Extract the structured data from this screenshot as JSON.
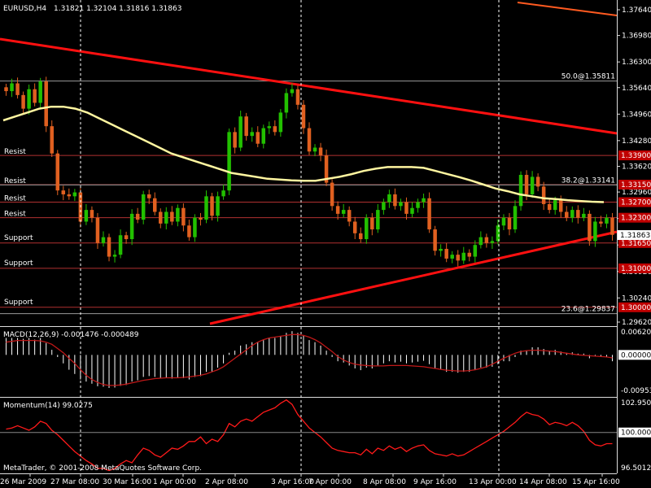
{
  "colors": {
    "background": "#000000",
    "bull": "#22c000",
    "bear": "#e06020",
    "ma": "#fff6a0",
    "trendline": "#ff1010",
    "level": "#b03030",
    "level_label_bg": "#c00000",
    "macd_hist": "#ffffff",
    "macd_signal": "#c01818",
    "momentum": "#ff1a1a",
    "axis_text": "#ffffff",
    "grid_vertical": "#ffffff"
  },
  "main": {
    "title": "EURUSD,H4",
    "ohlc": "1.31821 1.32104 1.31816 1.31863",
    "current_price": "1.31863",
    "y_ticks": [
      "1.37640",
      "1.36980",
      "1.36300",
      "1.35640",
      "1.34960",
      "1.34280",
      "1.33620",
      "1.32960",
      "1.32280",
      "1.31600",
      "1.30920",
      "1.30240",
      "1.29620"
    ],
    "level_tags": [
      "1.33900",
      "1.33150",
      "1.32700",
      "1.32300",
      "1.31650",
      "1.31000",
      "1.30000"
    ],
    "resist_labels": [
      "Resist",
      "Resist",
      "Resist",
      "Resist"
    ],
    "support_labels": [
      "Support",
      "Support",
      "Support"
    ],
    "fib_labels": [
      "50.0@1.35811",
      "38.2@1.33141",
      "23.6@1.29837"
    ]
  },
  "macd": {
    "title": "MACD(12,26,9) -0.001476 -0.000489",
    "y_ticks": [
      "0.006206",
      "0.000000",
      "-0.00953"
    ]
  },
  "momentum": {
    "title": "Momentum(14) 99.0275",
    "y_ticks": [
      "102.9505",
      "100.0000",
      "96.5012"
    ]
  },
  "x_ticks": [
    "26 Mar 2009",
    "27 Mar 08:00",
    "30 Mar 16:00",
    "1 Apr 00:00",
    "2 Apr 08:00",
    "3 Apr 16:00",
    "7 Apr 00:00",
    "8 Apr 08:00",
    "9 Apr 16:00",
    "13 Apr 00:00",
    "14 Apr 08:00",
    "15 Apr 16:00"
  ],
  "copyright": "MetaTrader, © 2001-2008 MetaQuotes Software Corp.",
  "chart_data": [
    {
      "type": "candlestick",
      "title": "EURUSD,H4",
      "ylim": [
        1.2962,
        1.3764
      ],
      "grid": false,
      "levels": [
        1.339,
        1.3315,
        1.327,
        1.323,
        1.3165,
        1.31,
        1.3
      ],
      "fibonacci": [
        {
          "label": "50.0",
          "value": 1.35811
        },
        {
          "label": "38.2",
          "value": 1.33141
        },
        {
          "label": "23.6",
          "value": 1.29837
        }
      ],
      "close": [
        1.3555,
        1.3575,
        1.3545,
        1.351,
        1.356,
        1.3525,
        1.358,
        1.3465,
        1.3395,
        1.33,
        1.329,
        1.3285,
        1.3295,
        1.322,
        1.325,
        1.323,
        1.3165,
        1.318,
        1.313,
        1.3135,
        1.3185,
        1.3175,
        1.324,
        1.3225,
        1.329,
        1.328,
        1.3245,
        1.3215,
        1.3245,
        1.322,
        1.3255,
        1.321,
        1.318,
        1.323,
        1.3225,
        1.3285,
        1.3235,
        1.3285,
        1.33,
        1.345,
        1.341,
        1.349,
        1.344,
        1.345,
        1.342,
        1.346,
        1.3465,
        1.345,
        1.35,
        1.355,
        1.356,
        1.352,
        1.346,
        1.34,
        1.341,
        1.339,
        1.332,
        1.326,
        1.324,
        1.325,
        1.322,
        1.319,
        1.3175,
        1.323,
        1.32,
        1.325,
        1.327,
        1.329,
        1.326,
        1.327,
        1.324,
        1.3255,
        1.327,
        1.328,
        1.32,
        1.3145,
        1.315,
        1.3125,
        1.3135,
        1.312,
        1.314,
        1.313,
        1.316,
        1.318,
        1.3165,
        1.317,
        1.321,
        1.323,
        1.32,
        1.326,
        1.334,
        1.329,
        1.3335,
        1.331,
        1.3265,
        1.325,
        1.3275,
        1.3245,
        1.323,
        1.325,
        1.323,
        1.324,
        1.317,
        1.322,
        1.3215,
        1.323,
        1.3186
      ],
      "ma": [
        1.348,
        1.349,
        1.35,
        1.351,
        1.3515,
        1.3515,
        1.351,
        1.35,
        1.3485,
        1.347,
        1.3455,
        1.344,
        1.3425,
        1.341,
        1.3395,
        1.3385,
        1.3375,
        1.3365,
        1.3355,
        1.3345,
        1.334,
        1.3335,
        1.333,
        1.3328,
        1.3326,
        1.3325,
        1.3325,
        1.333,
        1.3335,
        1.3342,
        1.335,
        1.3356,
        1.336,
        1.336,
        1.336,
        1.3358,
        1.335,
        1.3342,
        1.3334,
        1.3325,
        1.3315,
        1.3305,
        1.3298,
        1.329,
        1.3285,
        1.328,
        1.3278,
        1.3275,
        1.3273,
        1.3271,
        1.327
      ],
      "macd_histogram": [
        0.004,
        0.004,
        0.004,
        0.0038,
        0.004,
        0.0036,
        0.004,
        0.0028,
        0.0012,
        -0.0005,
        -0.002,
        -0.0035,
        -0.0045,
        -0.0058,
        -0.0063,
        -0.0068,
        -0.0074,
        -0.0075,
        -0.0078,
        -0.0077,
        -0.0073,
        -0.0071,
        -0.0063,
        -0.006,
        -0.0052,
        -0.005,
        -0.0052,
        -0.0055,
        -0.0054,
        -0.0056,
        -0.0053,
        -0.0055,
        -0.0058,
        -0.0052,
        -0.005,
        -0.004,
        -0.004,
        -0.003,
        -0.002,
        0.0005,
        0.001,
        0.0022,
        0.0025,
        0.003,
        0.003,
        0.0035,
        0.004,
        0.004,
        0.0045,
        0.0052,
        0.0056,
        0.0052,
        0.0045,
        0.0035,
        0.003,
        0.0022,
        0.001,
        -0.0005,
        -0.0015,
        -0.0018,
        -0.0025,
        -0.0032,
        -0.0036,
        -0.003,
        -0.0032,
        -0.0025,
        -0.002,
        -0.0015,
        -0.0018,
        -0.0016,
        -0.002,
        -0.0018,
        -0.0016,
        -0.0014,
        -0.0022,
        -0.0032,
        -0.0035,
        -0.004,
        -0.004,
        -0.0042,
        -0.004,
        -0.004,
        -0.0036,
        -0.003,
        -0.003,
        -0.0028,
        -0.0022,
        -0.0015,
        -0.0015,
        -0.0005,
        0.001,
        0.001,
        0.0018,
        0.0018,
        0.0014,
        0.001,
        0.0012,
        0.0008,
        0.0005,
        0.0006,
        0.0003,
        0.0003,
        -0.0008,
        -0.0004,
        -0.0004,
        -0.0006,
        -0.0015
      ],
      "macd_signal": [
        0.003,
        0.0032,
        0.0034,
        0.0034,
        0.0034,
        0.0034,
        0.0033,
        0.003,
        0.0025,
        0.0015,
        0.0005,
        -0.0008,
        -0.002,
        -0.0035,
        -0.0048,
        -0.0058,
        -0.0065,
        -0.007,
        -0.0072,
        -0.0072,
        -0.0071,
        -0.0069,
        -0.0066,
        -0.0063,
        -0.006,
        -0.0058,
        -0.0056,
        -0.0055,
        -0.0054,
        -0.0054,
        -0.0054,
        -0.0053,
        -0.0052,
        -0.005,
        -0.0048,
        -0.0045,
        -0.004,
        -0.0035,
        -0.0028,
        -0.0018,
        -0.0008,
        0.0002,
        0.0012,
        0.0022,
        0.003,
        0.0036,
        0.004,
        0.0042,
        0.0044,
        0.0046,
        0.0048,
        0.0048,
        0.0046,
        0.0042,
        0.0036,
        0.0028,
        0.0018,
        0.0008,
        -0.0004,
        -0.0012,
        -0.0018,
        -0.0022,
        -0.0024,
        -0.0025,
        -0.0026,
        -0.0026,
        -0.0026,
        -0.0025,
        -0.0025,
        -0.0025,
        -0.0025,
        -0.0026,
        -0.0027,
        -0.0028,
        -0.003,
        -0.0032,
        -0.0034,
        -0.0036,
        -0.0037,
        -0.0038,
        -0.0038,
        -0.0037,
        -0.0035,
        -0.0032,
        -0.0028,
        -0.0022,
        -0.0015,
        -0.0008,
        -0.0002,
        0.0004,
        0.0008,
        0.001,
        0.0011,
        0.0011,
        0.001,
        0.0009,
        0.0008,
        0.0006,
        0.0004,
        0.0002,
        0.0,
        -0.0001,
        -0.0002,
        -0.0003,
        -0.0004,
        -0.0005,
        -0.0007
      ],
      "momentum": [
        100.3,
        100.4,
        100.6,
        100.4,
        100.2,
        100.5,
        101.0,
        100.8,
        100.2,
        99.8,
        99.3,
        98.8,
        98.3,
        97.9,
        97.5,
        97.2,
        96.8,
        96.8,
        96.6,
        96.8,
        97.2,
        97.5,
        97.3,
        98.0,
        98.6,
        98.4,
        98.0,
        97.8,
        98.2,
        98.6,
        98.5,
        98.8,
        99.2,
        99.2,
        99.6,
        99.0,
        99.4,
        99.2,
        99.8,
        100.8,
        100.5,
        101.0,
        101.2,
        101.0,
        101.4,
        101.8,
        102.0,
        102.2,
        102.6,
        102.9,
        102.5,
        101.6,
        101.0,
        100.4,
        100.0,
        99.6,
        99.1,
        98.6,
        98.4,
        98.3,
        98.2,
        98.2,
        98.0,
        98.5,
        98.1,
        98.6,
        98.4,
        98.8,
        98.5,
        98.7,
        98.3,
        98.6,
        98.8,
        98.9,
        98.4,
        98.1,
        98.0,
        97.9,
        98.1,
        97.9,
        98.0,
        98.3,
        98.6,
        98.9,
        99.2,
        99.5,
        99.8,
        100.1,
        100.5,
        100.9,
        101.4,
        101.8,
        101.6,
        101.5,
        101.2,
        100.7,
        100.9,
        100.8,
        100.6,
        100.9,
        100.6,
        100.1,
        99.3,
        98.9,
        98.8,
        99.0,
        99.0
      ]
    }
  ]
}
